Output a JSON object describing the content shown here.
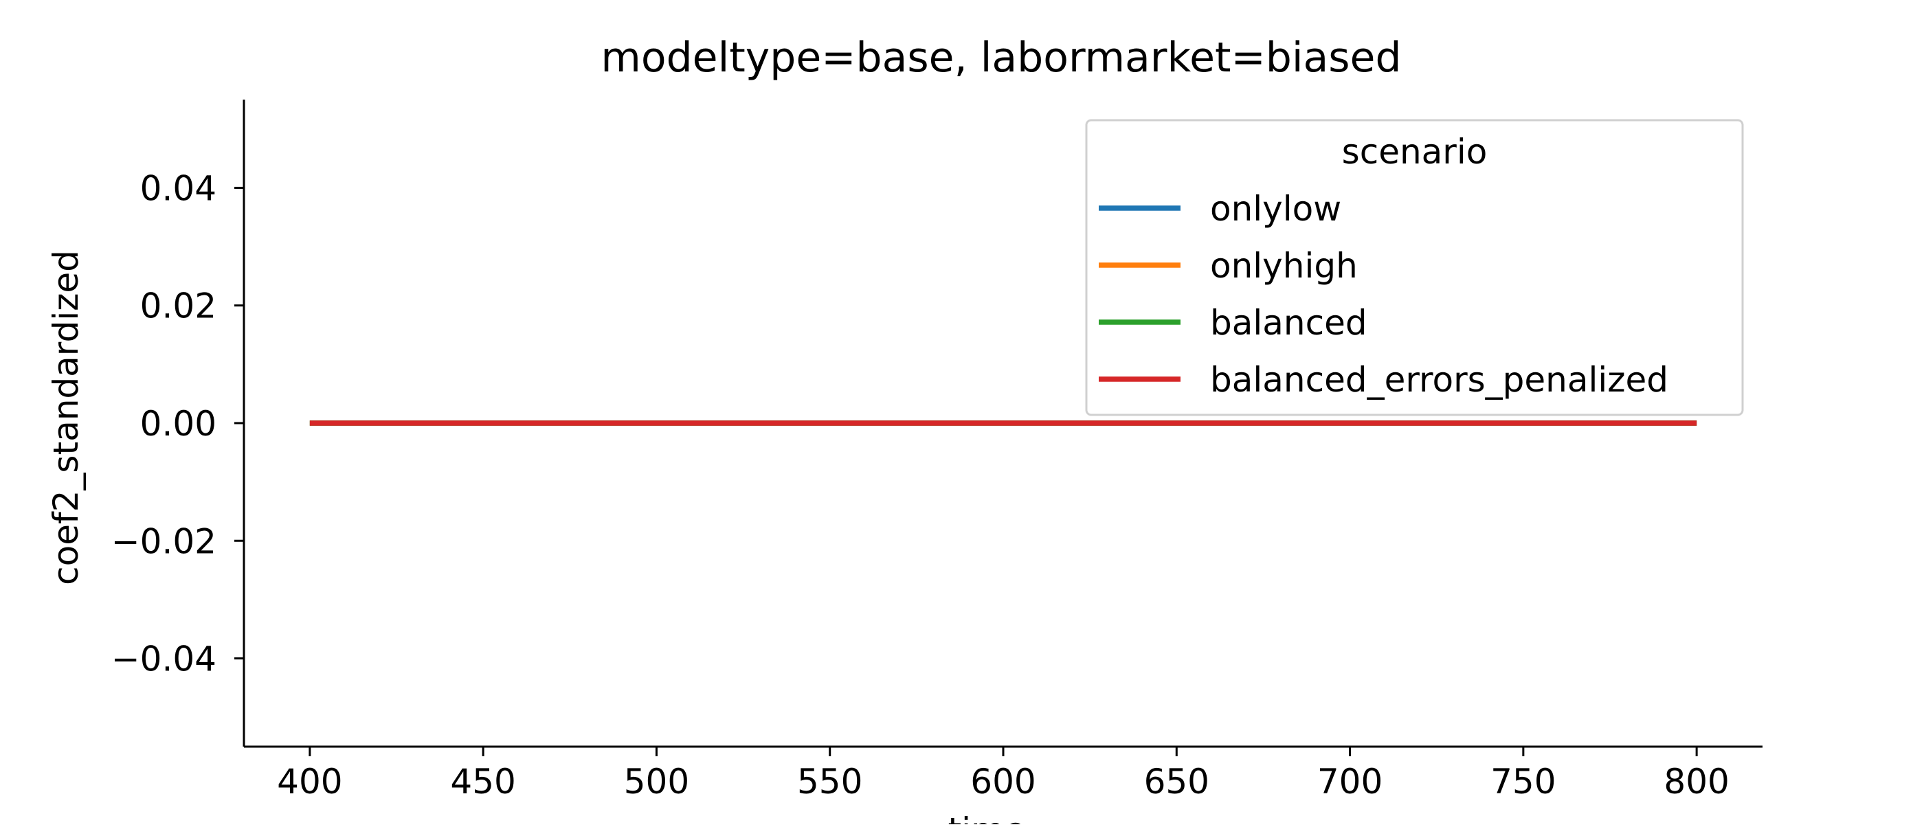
{
  "chart_data": {
    "type": "line",
    "title": "modeltype=base, labormarket=biased",
    "xlabel": "time",
    "ylabel": "coef2_standardized",
    "xlim": [
      381,
      819
    ],
    "ylim": [
      -0.055,
      0.055
    ],
    "x_ticks": [
      400,
      450,
      500,
      550,
      600,
      650,
      700,
      750,
      800
    ],
    "x_tick_labels": [
      "400",
      "450",
      "500",
      "550",
      "600",
      "650",
      "700",
      "750",
      "800"
    ],
    "y_ticks": [
      0.04,
      0.02,
      0.0,
      -0.02,
      -0.04
    ],
    "y_tick_labels": [
      "0.04",
      "0.02",
      "0.00",
      "−0.02",
      "−0.04"
    ],
    "grid": false,
    "legend": {
      "title": "scenario",
      "placement": "top-right"
    },
    "series": [
      {
        "name": "onlylow",
        "color": "#1f77b4",
        "x": [
          400,
          800
        ],
        "y": [
          0,
          0
        ]
      },
      {
        "name": "onlyhigh",
        "color": "#ff7f0e",
        "x": [
          400,
          800
        ],
        "y": [
          0,
          0
        ]
      },
      {
        "name": "balanced",
        "color": "#2ca02c",
        "x": [
          400,
          800
        ],
        "y": [
          0,
          0
        ]
      },
      {
        "name": "balanced_errors_penalized",
        "color": "#d62728",
        "x": [
          400,
          800
        ],
        "y": [
          0,
          0
        ]
      }
    ]
  }
}
